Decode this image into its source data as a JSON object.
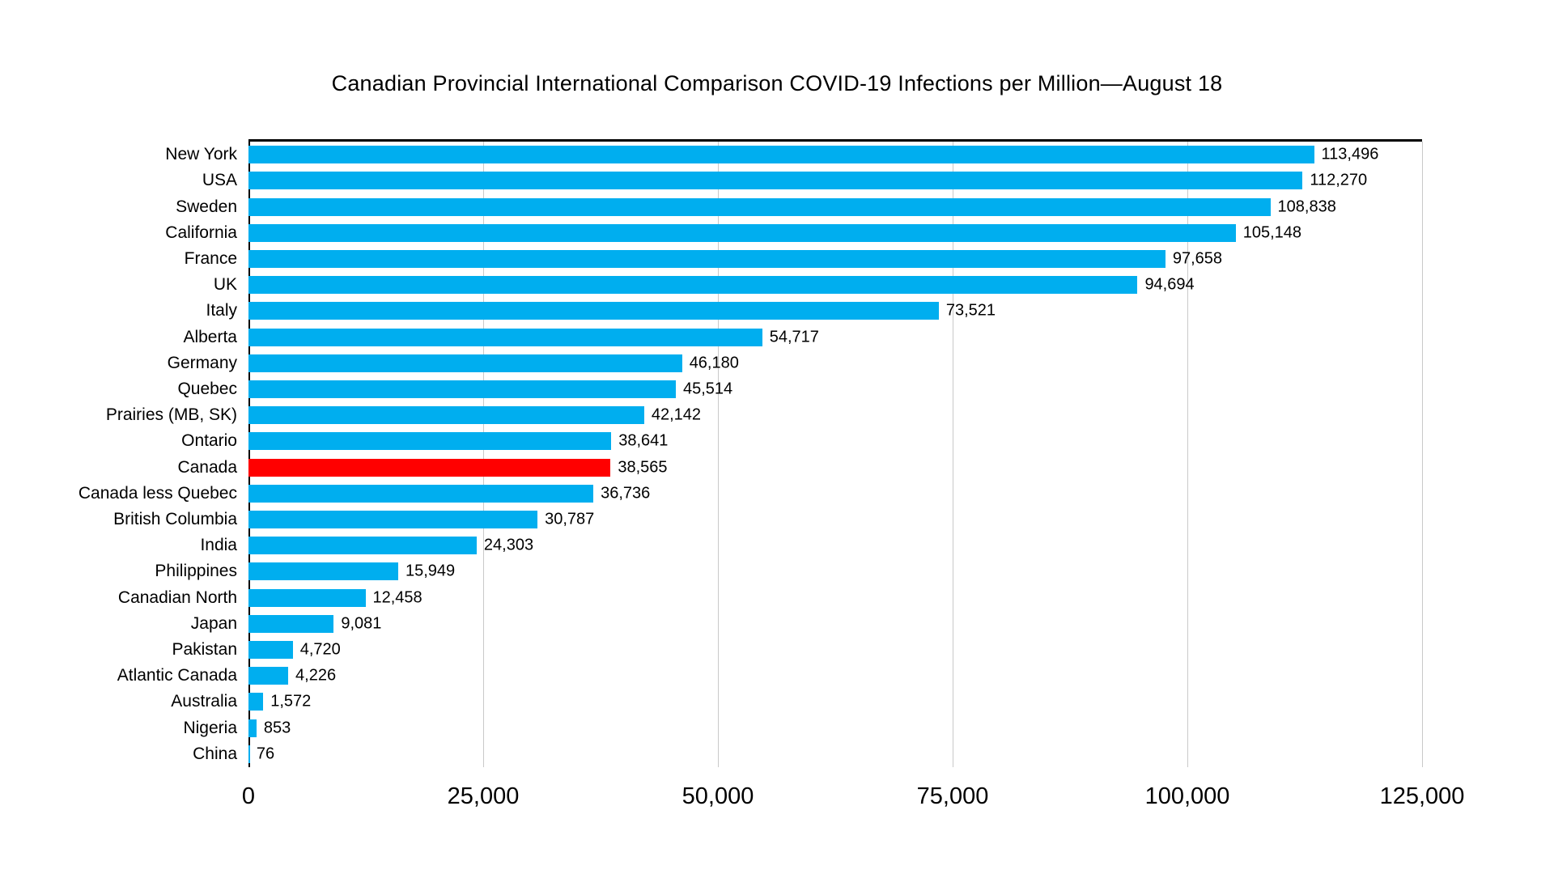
{
  "title": "Canadian Provincial International Comparison COVID-19 Infections per Million—August 18",
  "chart_data": {
    "type": "bar",
    "orientation": "horizontal",
    "title": "Canadian Provincial International Comparison COVID-19 Infections per Million—August 18",
    "categories": [
      "New York",
      "USA",
      "Sweden",
      "California",
      "France",
      "UK",
      "Italy",
      "Alberta",
      "Germany",
      "Quebec",
      "Prairies (MB, SK)",
      "Ontario",
      "Canada",
      "Canada less Quebec",
      "British Columbia",
      "India",
      "Philippines",
      "Canadian North",
      "Japan",
      "Pakistan",
      "Atlantic Canada",
      "Australia",
      "Nigeria",
      "China"
    ],
    "values": [
      113496,
      112270,
      108838,
      105148,
      97658,
      94694,
      73521,
      54717,
      46180,
      45514,
      42142,
      38641,
      38565,
      36736,
      30787,
      24303,
      15949,
      12458,
      9081,
      4720,
      4226,
      1572,
      853,
      76
    ],
    "value_labels": [
      "113,496",
      "112,270",
      "108,838",
      "105,148",
      "97,658",
      "94,694",
      "73,521",
      "54,717",
      "46,180",
      "45,514",
      "42,142",
      "38,641",
      "38,565",
      "36,736",
      "30,787",
      "24,303",
      "15,949",
      "12,458",
      "9,081",
      "4,720",
      "4,226",
      "1,572",
      "853",
      "76"
    ],
    "highlight_category": "Canada",
    "highlight_index": 12,
    "xlabel": "",
    "ylabel": "",
    "xlim": [
      0,
      125000
    ],
    "x_ticks": [
      0,
      25000,
      50000,
      75000,
      100000,
      125000
    ],
    "x_tick_labels": [
      "0",
      "25,000",
      "50,000",
      "75,000",
      "100,000",
      "125,000"
    ],
    "bar_color": "#00AEEF",
    "highlight_color": "#FF0000",
    "gridline_color": "#C9C9C9",
    "axis_line_color": "#000000",
    "grid": true,
    "legend": false
  }
}
